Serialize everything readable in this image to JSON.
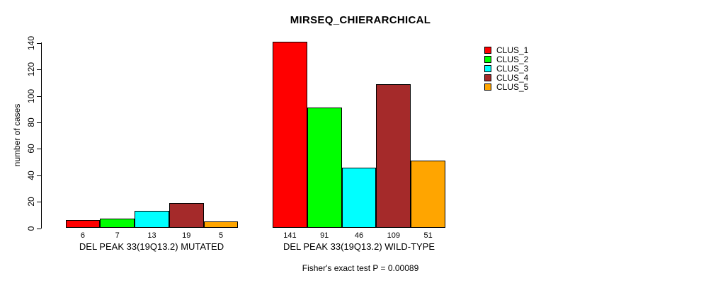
{
  "chart_data": {
    "type": "bar",
    "title": "MIRSEQ_CHIERARCHICAL",
    "ylabel": "number of cases",
    "xlabel": "",
    "ylim": [
      0,
      140
    ],
    "yticks": [
      0,
      20,
      40,
      60,
      80,
      100,
      120,
      140
    ],
    "grid": false,
    "legend_position": "top-right",
    "categories": [
      "DEL PEAK 33(19Q13.2) MUTATED",
      "DEL PEAK 33(19Q13.2) WILD-TYPE"
    ],
    "series": [
      {
        "name": "CLUS_1",
        "color": "#FF0000",
        "values": [
          6,
          141
        ]
      },
      {
        "name": "CLUS_2",
        "color": "#00FF00",
        "values": [
          7,
          91
        ]
      },
      {
        "name": "CLUS_3",
        "color": "#00FFFF",
        "values": [
          13,
          46
        ]
      },
      {
        "name": "CLUS_4",
        "color": "#A52A2A",
        "values": [
          19,
          109
        ]
      },
      {
        "name": "CLUS_5",
        "color": "#FFA500",
        "values": [
          5,
          51
        ]
      }
    ],
    "bar_value_labels": [
      [
        "6",
        "7",
        "13",
        "19",
        "5"
      ],
      [
        "141",
        "91",
        "46",
        "109",
        "51"
      ]
    ],
    "footnote": "Fisher's exact test P = 0.00089"
  }
}
